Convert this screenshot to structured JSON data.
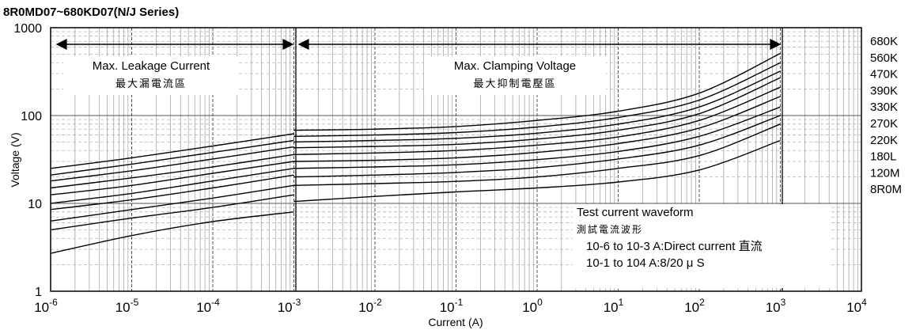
{
  "chart_data": {
    "type": "line",
    "title": "8R0MD07~680KD07(N/J Series)",
    "xlabel": "Current (A)",
    "ylabel": "Voltage (V)",
    "xscale": "log",
    "yscale": "log",
    "xlim": [
      1e-06,
      10000.0
    ],
    "ylim": [
      1,
      1000
    ],
    "x_ticks": [
      {
        "value": 1e-06,
        "base": "10",
        "exp": "-6"
      },
      {
        "value": 1e-05,
        "base": "10",
        "exp": "-5"
      },
      {
        "value": 0.0001,
        "base": "10",
        "exp": "-4"
      },
      {
        "value": 0.001,
        "base": "10",
        "exp": "-3"
      },
      {
        "value": 0.01,
        "base": "10",
        "exp": "-2"
      },
      {
        "value": 0.1,
        "base": "10",
        "exp": "-1"
      },
      {
        "value": 1,
        "base": "10",
        "exp": "0"
      },
      {
        "value": 10,
        "base": "10",
        "exp": "1"
      },
      {
        "value": 100,
        "base": "10",
        "exp": "2"
      },
      {
        "value": 1000,
        "base": "10",
        "exp": "3"
      },
      {
        "value": 10000,
        "base": "10",
        "exp": "4"
      }
    ],
    "y_ticks": [
      {
        "value": 1,
        "label": "1"
      },
      {
        "value": 10,
        "label": "10"
      },
      {
        "value": 100,
        "label": "100"
      },
      {
        "value": 1000,
        "label": "1000"
      }
    ],
    "grid": true,
    "regions": [
      {
        "label": "Max. Leakage Current",
        "label_cn": "最大漏電流區",
        "x_from": 1e-06,
        "x_to": 0.001
      },
      {
        "label": "Max. Clamping Voltage",
        "label_cn": "最大抑制電壓區",
        "x_from": 0.001,
        "x_to": 1000
      }
    ],
    "note": {
      "title": "Test current waveform",
      "title_cn": "測試電流波形",
      "line1": "10-6 to 10-3 A:Direct current 直流",
      "line2": "10-1 to 104  A:8/20 μ S"
    },
    "series": [
      {
        "name": "680K",
        "leakage": {
          "x": [
            1e-06,
            1e-05,
            0.0001,
            0.001
          ],
          "y": [
            25,
            33,
            45,
            62
          ]
        },
        "clamping": {
          "x": [
            0.001,
            0.01,
            0.1,
            1,
            10,
            100,
            1000
          ],
          "y": [
            68,
            70,
            75,
            88,
            112,
            180,
            510
          ]
        }
      },
      {
        "name": "560K",
        "leakage": {
          "x": [
            1e-06,
            1e-05,
            0.0001,
            0.001
          ],
          "y": [
            21,
            28,
            38,
            52
          ]
        },
        "clamping": {
          "x": [
            0.001,
            0.01,
            0.1,
            1,
            10,
            100,
            1000
          ],
          "y": [
            58,
            60,
            64,
            74,
            95,
            150,
            400
          ]
        }
      },
      {
        "name": "470K",
        "leakage": {
          "x": [
            1e-06,
            1e-05,
            0.0001,
            0.001
          ],
          "y": [
            18,
            23.5,
            32,
            44
          ]
        },
        "clamping": {
          "x": [
            0.001,
            0.01,
            0.1,
            1,
            10,
            100,
            1000
          ],
          "y": [
            50,
            52,
            55,
            63,
            80,
            125,
            320
          ]
        }
      },
      {
        "name": "390K",
        "leakage": {
          "x": [
            1e-06,
            1e-05,
            0.0001,
            0.001
          ],
          "y": [
            15,
            19.5,
            26,
            36
          ]
        },
        "clamping": {
          "x": [
            0.001,
            0.01,
            0.1,
            1,
            10,
            100,
            1000
          ],
          "y": [
            43,
            44.5,
            47,
            54,
            68,
            105,
            270
          ]
        }
      },
      {
        "name": "330K",
        "leakage": {
          "x": [
            1e-06,
            1e-05,
            0.0001,
            0.001
          ],
          "y": [
            12.5,
            16,
            22,
            30
          ]
        },
        "clamping": {
          "x": [
            0.001,
            0.01,
            0.1,
            1,
            10,
            100,
            1000
          ],
          "y": [
            36,
            37.5,
            40,
            46,
            57,
            88,
            210
          ]
        }
      },
      {
        "name": "270K",
        "leakage": {
          "x": [
            1e-06,
            1e-05,
            0.0001,
            0.001
          ],
          "y": [
            10,
            13,
            18,
            25
          ]
        },
        "clamping": {
          "x": [
            0.001,
            0.01,
            0.1,
            1,
            10,
            100,
            1000
          ],
          "y": [
            30,
            31,
            33,
            38,
            48,
            72,
            165
          ]
        }
      },
      {
        "name": "220K",
        "leakage": {
          "x": [
            1e-06,
            1e-05,
            0.0001,
            0.001
          ],
          "y": [
            8.5,
            11,
            15,
            21
          ]
        },
        "clamping": {
          "x": [
            0.001,
            0.01,
            0.1,
            1,
            10,
            100,
            1000
          ],
          "y": [
            25,
            26,
            27.5,
            31.5,
            39,
            58,
            125
          ]
        }
      },
      {
        "name": "180L",
        "leakage": {
          "x": [
            1e-06,
            1e-05,
            0.0001,
            0.001
          ],
          "y": [
            6.3,
            8.5,
            11.5,
            16
          ]
        },
        "clamping": {
          "x": [
            0.001,
            0.01,
            0.1,
            1,
            10,
            100,
            1000
          ],
          "y": [
            20,
            21,
            22.5,
            25.5,
            32,
            46,
            100
          ]
        }
      },
      {
        "name": "120M",
        "leakage": {
          "x": [
            1e-06,
            1e-05,
            0.0001,
            0.001
          ],
          "y": [
            5,
            6.8,
            9,
            12.5
          ]
        },
        "clamping": {
          "x": [
            0.001,
            0.01,
            0.1,
            1,
            10,
            100,
            1000
          ],
          "y": [
            16,
            16.8,
            17.8,
            20,
            25,
            35,
            80
          ]
        }
      },
      {
        "name": "8R0M",
        "leakage": {
          "x": [
            1e-06,
            1e-05,
            0.0001,
            0.001
          ],
          "y": [
            2.7,
            4.3,
            6.2,
            8
          ]
        },
        "clamping": {
          "x": [
            0.001,
            0.01,
            0.1,
            1,
            10,
            100,
            1000
          ],
          "y": [
            10.5,
            12,
            13.5,
            15,
            17.5,
            24,
            52
          ]
        }
      }
    ]
  }
}
